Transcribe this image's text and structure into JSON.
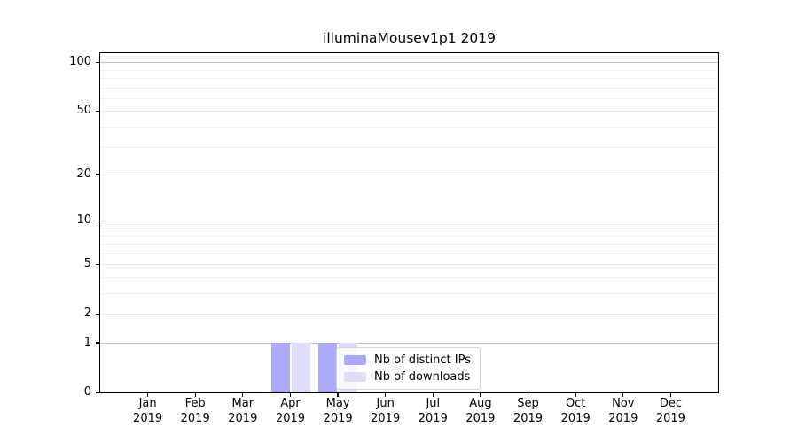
{
  "chart_data": {
    "type": "bar",
    "title": "illuminaMousev1p1 2019",
    "categories": [
      "Jan 2019",
      "Feb 2019",
      "Mar 2019",
      "Apr 2019",
      "May 2019",
      "Jun 2019",
      "Jul 2019",
      "Aug 2019",
      "Sep 2019",
      "Oct 2019",
      "Nov 2019",
      "Dec 2019"
    ],
    "series": [
      {
        "name": "Nb of distinct IPs",
        "color": "#aaaaf8",
        "values": [
          0,
          0,
          0,
          1,
          1,
          0,
          0,
          0,
          0,
          0,
          0,
          0
        ]
      },
      {
        "name": "Nb of downloads",
        "color": "#ddddf8",
        "values": [
          0,
          0,
          0,
          1,
          1,
          0,
          0,
          0,
          0,
          0,
          0,
          0
        ]
      }
    ],
    "yscale": "log1p",
    "ylim": [
      0,
      114
    ],
    "yticks": [
      0,
      1,
      2,
      5,
      10,
      20,
      50,
      100
    ],
    "yticks_major_grid": [
      1,
      10,
      100
    ],
    "yticks_minor_grid": [
      3,
      4,
      6,
      7,
      8,
      9,
      30,
      40,
      60,
      70,
      80,
      90,
      110
    ],
    "grid": true,
    "legend": {
      "position": "lower-center-inside",
      "entries": [
        "Nb of distinct IPs",
        "Nb of downloads"
      ]
    }
  }
}
